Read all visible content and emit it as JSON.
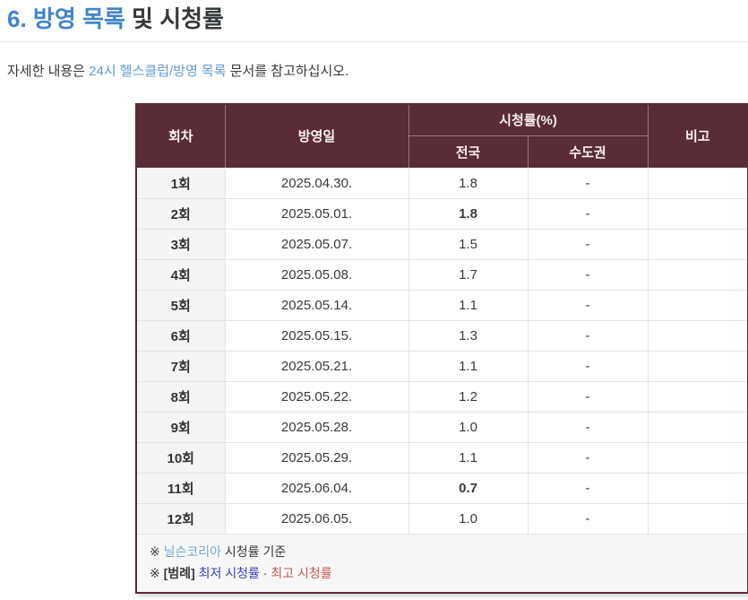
{
  "colors": {
    "header_bg": "#5a2c38",
    "heading_link": "#4285c9",
    "link": "#5f9cd2",
    "footnote_link": "#74aad8",
    "highest": "#bf4e48",
    "lowest": "#2e3194",
    "legend_low": "#3a41be",
    "legend_high": "#cb5a52"
  },
  "heading": {
    "number": "6. ",
    "link_text": "방영 목록",
    "rest_text": " 및 시청률"
  },
  "intro": {
    "prefix": "자세한 내용은 ",
    "link": "24시 헬스클럽/방영 목록",
    "suffix": " 문서를 참고하십시오."
  },
  "table": {
    "headers": {
      "episode": "회차",
      "air_date": "방영일",
      "ratings_group": "시청률(%)",
      "nationwide": "전국",
      "metro": "수도권",
      "note": "비고"
    },
    "rows": [
      {
        "episode": "1회",
        "date": "2025.04.30.",
        "nationwide": "1.8",
        "metro": "-",
        "note": "",
        "highlight": ""
      },
      {
        "episode": "2회",
        "date": "2025.05.01.",
        "nationwide": "1.8",
        "metro": "-",
        "note": "",
        "highlight": "highest"
      },
      {
        "episode": "3회",
        "date": "2025.05.07.",
        "nationwide": "1.5",
        "metro": "-",
        "note": "",
        "highlight": ""
      },
      {
        "episode": "4회",
        "date": "2025.05.08.",
        "nationwide": "1.7",
        "metro": "-",
        "note": "",
        "highlight": ""
      },
      {
        "episode": "5회",
        "date": "2025.05.14.",
        "nationwide": "1.1",
        "metro": "-",
        "note": "",
        "highlight": ""
      },
      {
        "episode": "6회",
        "date": "2025.05.15.",
        "nationwide": "1.3",
        "metro": "-",
        "note": "",
        "highlight": ""
      },
      {
        "episode": "7회",
        "date": "2025.05.21.",
        "nationwide": "1.1",
        "metro": "-",
        "note": "",
        "highlight": ""
      },
      {
        "episode": "8회",
        "date": "2025.05.22.",
        "nationwide": "1.2",
        "metro": "-",
        "note": "",
        "highlight": ""
      },
      {
        "episode": "9회",
        "date": "2025.05.28.",
        "nationwide": "1.0",
        "metro": "-",
        "note": "",
        "highlight": ""
      },
      {
        "episode": "10회",
        "date": "2025.05.29.",
        "nationwide": "1.1",
        "metro": "-",
        "note": "",
        "highlight": ""
      },
      {
        "episode": "11회",
        "date": "2025.06.04.",
        "nationwide": "0.7",
        "metro": "-",
        "note": "",
        "highlight": "lowest"
      },
      {
        "episode": "12회",
        "date": "2025.06.05.",
        "nationwide": "1.0",
        "metro": "-",
        "note": "",
        "highlight": ""
      }
    ],
    "footnotes": {
      "line1": {
        "marker": "※ ",
        "link": "닐슨코리아",
        "rest": " 시청률 기준"
      },
      "line2": {
        "marker": "※ ",
        "legend_label": "[범례]",
        "space": " ",
        "lowest": "최저 시청률",
        "separator": "  ·  ",
        "highest": "최고 시청률"
      }
    }
  }
}
